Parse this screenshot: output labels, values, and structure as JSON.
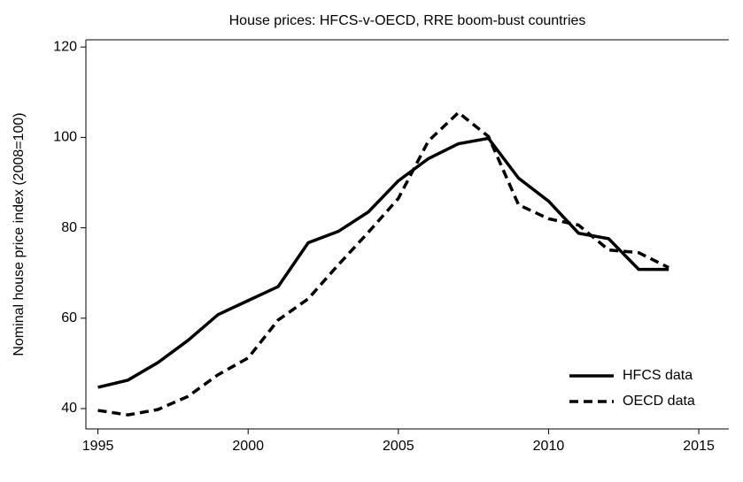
{
  "chart_data": {
    "type": "line",
    "title": "House prices: HFCS-v-OECD, RRE boom-bust countries",
    "y_label": "Nominal house price index (2008=100)",
    "x": [
      1995,
      1996,
      1997,
      1998,
      1999,
      2000,
      2001,
      2002,
      2003,
      2004,
      2005,
      2006,
      2007,
      2008,
      2009,
      2010,
      2011,
      2012,
      2013,
      2014
    ],
    "series": [
      {
        "name": "HFCS data",
        "color": "#000000",
        "dash": "solid",
        "values": [
          44.7,
          46.3,
          50.2,
          55.1,
          60.8,
          63.9,
          67.0,
          76.7,
          79.2,
          83.5,
          90.4,
          95.3,
          98.6,
          99.8,
          91.0,
          85.9,
          78.8,
          77.6,
          70.8,
          70.8
        ]
      },
      {
        "name": "OECD data",
        "color": "#000000",
        "dash": "dashed",
        "values": [
          39.6,
          38.6,
          39.8,
          42.7,
          47.5,
          51.2,
          59.6,
          64.3,
          71.8,
          79.0,
          86.5,
          99.2,
          105.5,
          100.2,
          85.1,
          82.0,
          80.6,
          75.1,
          74.5,
          71.2
        ]
      }
    ],
    "xlim": [
      1994.6,
      2016.0
    ],
    "xticks": [
      1995,
      2000,
      2005,
      2010,
      2015
    ],
    "ylim": [
      35.5,
      121.6
    ],
    "yticks": [
      40,
      60,
      80,
      100,
      120
    ],
    "legend": "lower right"
  }
}
